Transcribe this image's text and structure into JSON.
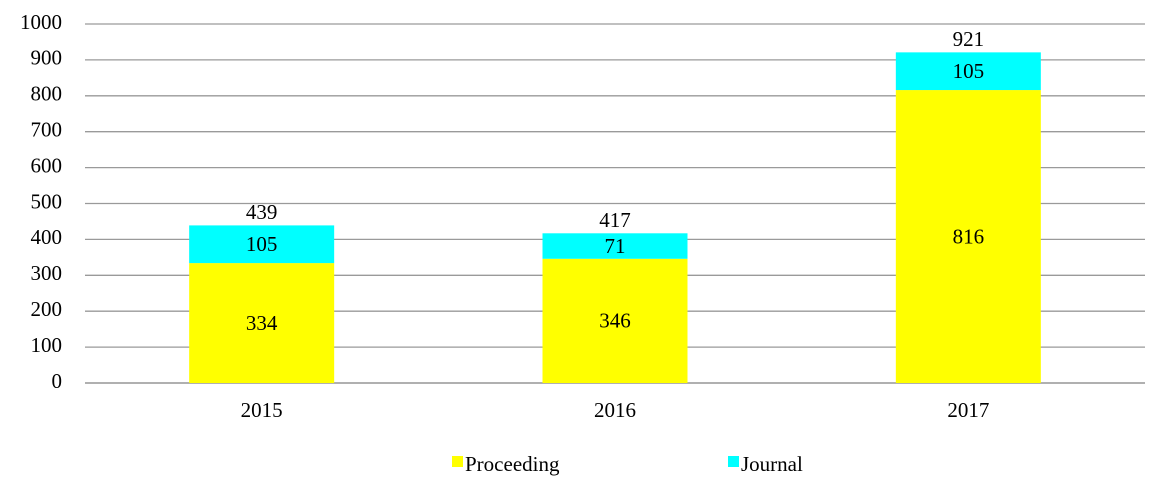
{
  "chart_data": {
    "type": "stacked_bar",
    "categories": [
      "2015",
      "2016",
      "2017"
    ],
    "series": [
      {
        "name": "Proceeding",
        "color": "#ffff00",
        "values": [
          334,
          346,
          816
        ]
      },
      {
        "name": "Journal",
        "color": "#00ffff",
        "values": [
          105,
          71,
          105
        ]
      }
    ],
    "totals": [
      439,
      417,
      921
    ],
    "ylim": [
      0,
      1000
    ],
    "yticks": [
      0,
      100,
      200,
      300,
      400,
      500,
      600,
      700,
      800,
      900,
      1000
    ],
    "grid": true,
    "legend": "bottom"
  }
}
